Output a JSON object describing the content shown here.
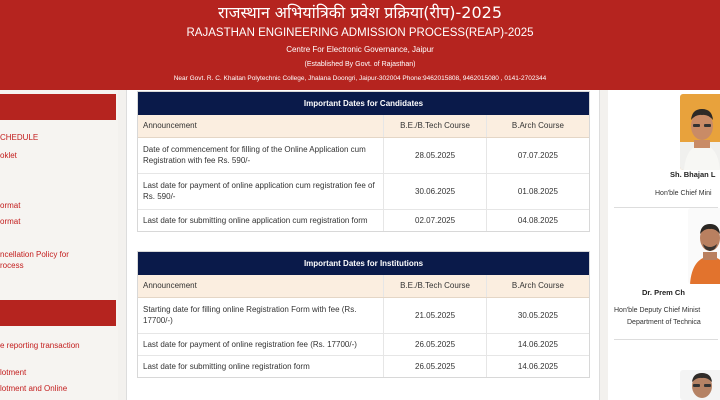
{
  "header": {
    "title_hindi": "राजस्थान अभियांत्रिकी प्रवेश प्रक्रिया(रीप)-2025",
    "title_english": "RAJASTHAN ENGINEERING ADMISSION PROCESS(REAP)-2025",
    "centre": "Centre For Electronic Governance, Jaipur",
    "established": "(Established By Govt. of Rajasthan)",
    "address": "Near Govt. R. C. Khaitan Polytechnic College, Jhalana Doongri, Jaipur-302004 Phone:9462015808, 9462015080 , 0141-2702344"
  },
  "sidebar": {
    "links": [
      "CHEDULE",
      "oklet",
      "ormat",
      "ormat",
      "ncellation Policy for",
      "rocess",
      "e reporting transaction",
      "lotment",
      "lotment and Online"
    ]
  },
  "candidates": {
    "title": "Important Dates for Candidates",
    "headers": [
      "Announcement",
      "B.E./B.Tech Course",
      "B.Arch Course"
    ],
    "rows": [
      [
        "Date of commencement for filling of the Online Application cum Registration with fee Rs. 590/-",
        "28.05.2025",
        "07.07.2025"
      ],
      [
        "Last date for payment of online application cum registration fee of Rs. 590/-",
        "30.06.2025",
        "01.08.2025"
      ],
      [
        "Last date for submitting online application cum registration form",
        "02.07.2025",
        "04.08.2025"
      ]
    ]
  },
  "institutions": {
    "title": "Important Dates for Institutions",
    "headers": [
      "Announcement",
      "B.E./B.Tech Course",
      "B.Arch Course"
    ],
    "rows": [
      [
        "Starting date for filling online Registration Form with fee (Rs. 17700/-)",
        "21.05.2025",
        "30.05.2025"
      ],
      [
        "Last date for payment of online registration fee (Rs. 17700/-)",
        "26.05.2025",
        "14.06.2025"
      ],
      [
        "Last date for submitting online registration form",
        "26.05.2025",
        "14.06.2025"
      ]
    ]
  },
  "dignitaries": [
    {
      "name": "Sh. Bhajan L",
      "designation": [
        "Hon'ble Chief Mini"
      ]
    },
    {
      "name": "Dr. Prem Ch",
      "designation": [
        "Hon'ble Deputy Chief Minist",
        "Department of Technica"
      ]
    }
  ],
  "colors": {
    "header": "#b5241f",
    "table_title": "#0a1a4a",
    "link": "#c31d1d",
    "table_header": "#fbeee0"
  }
}
